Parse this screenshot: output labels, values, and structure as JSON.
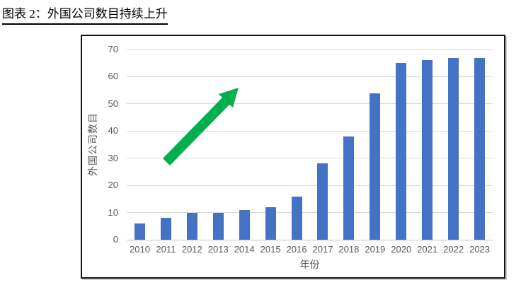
{
  "title": "图表 2：外国公司数目持续上升",
  "colors": {
    "bar": "#4472C4",
    "arrow": "#00B050",
    "gridline": "#D9D9D9",
    "axis_text": "#595959",
    "frame_border": "#141414"
  },
  "chart_data": {
    "type": "bar",
    "title": "图表 2：外国公司数目持续上升",
    "xlabel": "年份",
    "ylabel": "外国公司数目",
    "categories": [
      "2010",
      "2011",
      "2012",
      "2013",
      "2014",
      "2015",
      "2016",
      "2017",
      "2018",
      "2019",
      "2020",
      "2021",
      "2022",
      "2023"
    ],
    "values": [
      6,
      8,
      10,
      10,
      11,
      12,
      16,
      28,
      38,
      54,
      65,
      66,
      67,
      67
    ],
    "ylim": [
      0,
      70
    ],
    "yticks": [
      0,
      10,
      20,
      30,
      40,
      50,
      60,
      70
    ],
    "grid": "horizontal",
    "legend": "none",
    "annotations": [
      "green upward trend arrow over left half of plot"
    ]
  }
}
